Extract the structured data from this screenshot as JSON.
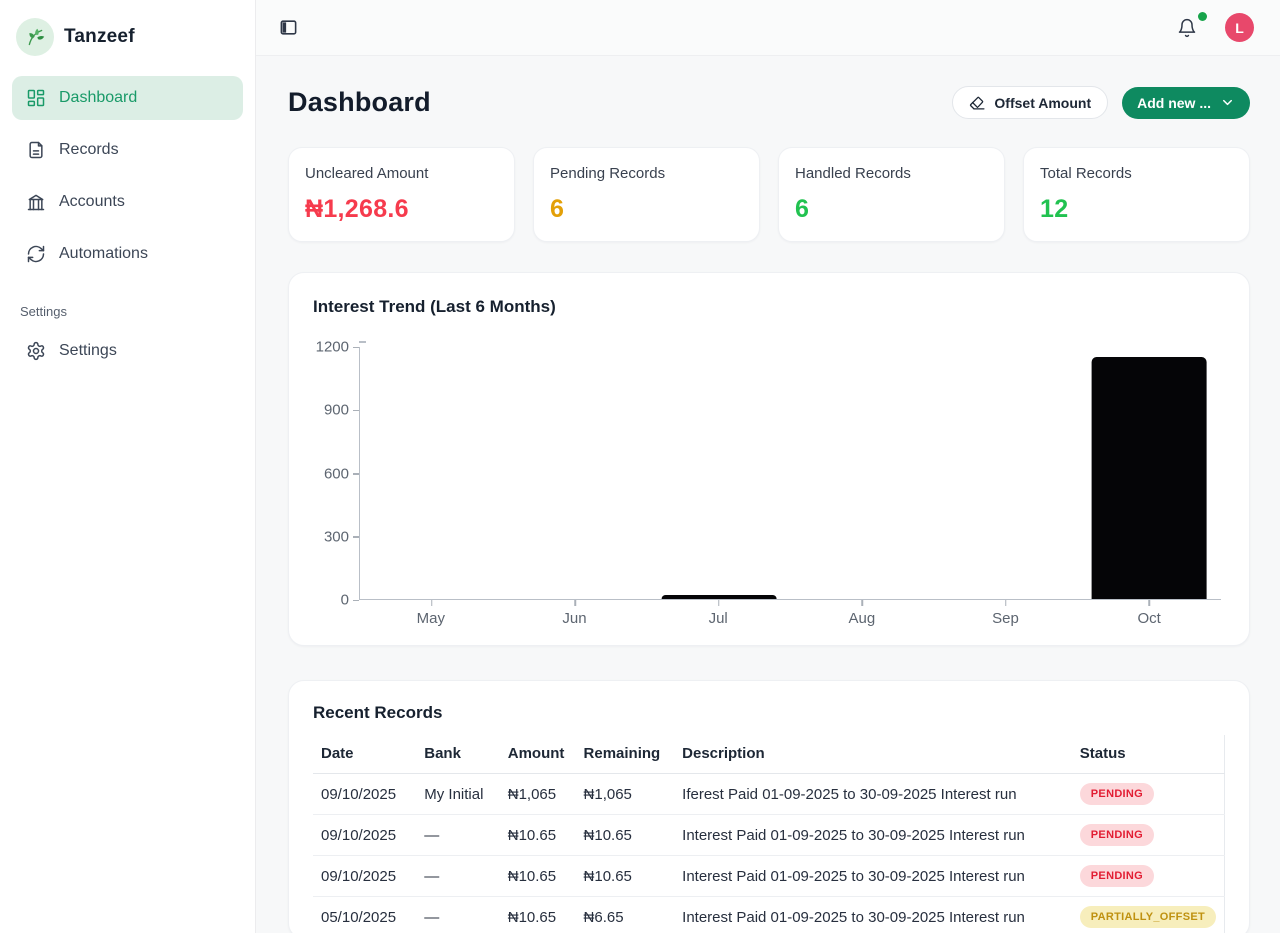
{
  "brand": {
    "name": "Tanzeef",
    "logo_icon": "plant-leaf-icon"
  },
  "sidebar": {
    "items": [
      {
        "label": "Dashboard",
        "icon": "dashboard-grid-icon",
        "active": true
      },
      {
        "label": "Records",
        "icon": "file-document-icon",
        "active": false
      },
      {
        "label": "Accounts",
        "icon": "bank-building-icon",
        "active": false
      },
      {
        "label": "Automations",
        "icon": "refresh-arrows-icon",
        "active": false
      }
    ],
    "section_label": "Settings",
    "settings_item": {
      "label": "Settings",
      "icon": "gear-icon"
    }
  },
  "topbar": {
    "toggle_icon": "panel-left-icon",
    "bell_icon": "bell-icon",
    "notification_dot_color": "#17a34a",
    "avatar_initial": "L",
    "avatar_color": "#e8486b"
  },
  "header": {
    "title": "Dashboard",
    "offset_button_label": "Offset Amount",
    "offset_button_icon": "eraser-icon",
    "add_button_label": "Add new ...",
    "add_button_icon": "chevron-down-icon",
    "accent_green": "#0e8a60"
  },
  "stats": [
    {
      "label": "Uncleared Amount",
      "value": "₦1,268.6",
      "color": "#f63b4d"
    },
    {
      "label": "Pending Records",
      "value": "6",
      "color": "#e3a008"
    },
    {
      "label": "Handled Records",
      "value": "6",
      "color": "#21c250"
    },
    {
      "label": "Total Records",
      "value": "12",
      "color": "#21c250"
    }
  ],
  "chart_data": {
    "type": "bar",
    "title": "Interest Trend (Last 6 Months)",
    "categories": [
      "May",
      "Jun",
      "Jul",
      "Aug",
      "Sep",
      "Oct"
    ],
    "values": [
      0,
      0,
      21,
      0,
      0,
      1148
    ],
    "ylim": [
      0,
      1200
    ],
    "yticks": [
      0,
      300,
      600,
      900,
      1200
    ],
    "bar_color": "#050507",
    "grid": false,
    "legend": "none",
    "xlabel": "",
    "ylabel": ""
  },
  "records": {
    "title": "Recent Records",
    "columns": [
      "Date",
      "Bank",
      "Amount",
      "Remaining",
      "Description",
      "Status"
    ],
    "rows": [
      {
        "date": "09/10/2025",
        "bank": "My Initial",
        "amount": "₦1,065",
        "remaining": "₦1,065",
        "description": "Iferest Paid 01-09-2025 to 30-09-2025 Interest run",
        "status": "PENDING",
        "status_type": "pending"
      },
      {
        "date": "09/10/2025",
        "bank": "—",
        "amount": "₦10.65",
        "remaining": "₦10.65",
        "description": "Interest Paid 01-09-2025 to 30-09-2025 Interest run",
        "status": "PENDING",
        "status_type": "pending"
      },
      {
        "date": "09/10/2025",
        "bank": "—",
        "amount": "₦10.65",
        "remaining": "₦10.65",
        "description": "Interest Paid 01-09-2025 to 30-09-2025 Interest run",
        "status": "PENDING",
        "status_type": "pending"
      },
      {
        "date": "05/10/2025",
        "bank": "—",
        "amount": "₦10.65",
        "remaining": "₦6.65",
        "description": "Interest Paid 01-09-2025 to 30-09-2025 Interest run",
        "status": "PARTIALLY_OFFSET",
        "status_type": "partial"
      }
    ],
    "status_styles": {
      "pending": {
        "bg": "#fcd8db",
        "fg": "#e21d33"
      },
      "partial": {
        "bg": "#f7eebc",
        "fg": "#bf9110"
      }
    }
  }
}
